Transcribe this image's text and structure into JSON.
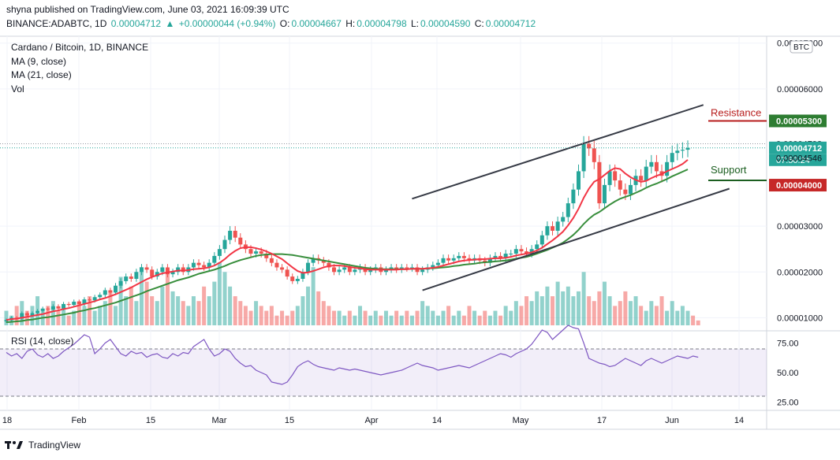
{
  "header": {
    "published": "shyna published on TradingView.com, June 03, 2021 16:09:39 UTC",
    "symbol": "BINANCE:ADABTC, 1D",
    "price": "0.00004712",
    "change": "+0.00000044 (+0.94%)",
    "open_label": "O:",
    "open": "0.00004667",
    "high_label": "H:",
    "high": "0.00004798",
    "low_label": "L:",
    "low": "0.00004590",
    "close_label": "C:",
    "close": "0.00004712"
  },
  "legend": {
    "title": "Cardano / Bitcoin, 1D, BINANCE",
    "ma9": "MA (9, close)",
    "ma21": "MA (21, close)",
    "vol": "Vol",
    "currency": "BTC"
  },
  "rsi_label": "RSI (14, close)",
  "footer": {
    "brand": "TradingView"
  },
  "colors": {
    "up": "#26a69a",
    "down": "#ef5350",
    "ma9": "#f23645",
    "ma21": "#388e3c",
    "rsi": "#7e57c2",
    "resistance": "#b71c1c",
    "support": "#1b5e20"
  },
  "chart_data": {
    "type": "candlestick",
    "title": "Cardano / Bitcoin, 1D, BINANCE",
    "y_ticks": [
      "0.00007000",
      "0.00006000",
      "0.00005300",
      "0.00004798",
      "0.00004712",
      "0.00004546",
      "0.00004000",
      "0.00003000",
      "0.00002000",
      "0.00001000"
    ],
    "ylim": [
      8e-06,
      7.15e-05
    ],
    "x_ticks": [
      "18",
      "Feb",
      "15",
      "Mar",
      "15",
      "Apr",
      "14",
      "May",
      "17",
      "Jun",
      "14"
    ],
    "price_labels": {
      "resistance_level": "0.00005300",
      "high": "0.00004798",
      "last": "0.00004712",
      "countdown": "07:50:24",
      "ma": "0.00004546",
      "support_level": "0.00004000"
    },
    "annotations": {
      "resistance": "Resistance",
      "support": "Support"
    },
    "close_series": [
      9.5e-06,
      1e-05,
      9.8e-06,
      1.1e-05,
      1.05e-05,
      1.1e-05,
      1.15e-05,
      1.2e-05,
      1.18e-05,
      1.25e-05,
      1.2e-05,
      1.3e-05,
      1.28e-05,
      1.35e-05,
      1.3e-05,
      1.4e-05,
      1.38e-05,
      1.45e-05,
      1.5e-05,
      1.6e-05,
      1.55e-05,
      1.7e-05,
      1.8e-05,
      1.9e-05,
      1.85e-05,
      2e-05,
      2.1e-05,
      2.05e-05,
      1.9e-05,
      2e-05,
      2.1e-05,
      1.95e-05,
      2e-05,
      2.1e-05,
      2e-05,
      2.1e-05,
      2.2e-05,
      2.15e-05,
      2.1e-05,
      2.2e-05,
      2.35e-05,
      2.5e-05,
      2.7e-05,
      2.9e-05,
      2.75e-05,
      2.6e-05,
      2.5e-05,
      2.4e-05,
      2.45e-05,
      2.4e-05,
      2.3e-05,
      2.2e-05,
      2.1e-05,
      2.05e-05,
      1.9e-05,
      1.8e-05,
      1.85e-05,
      2e-05,
      2.2e-05,
      2.3e-05,
      2.25e-05,
      2.2e-05,
      2.1e-05,
      2e-05,
      2.05e-05,
      2.1e-05,
      2e-05,
      2.05e-05,
      2.1e-05,
      2e-05,
      2.05e-05,
      2.1e-05,
      2e-05,
      2.05e-05,
      2.1e-05,
      2.05e-05,
      2.1e-05,
      2.08e-05,
      2.1e-05,
      2e-05,
      2.05e-05,
      2.1e-05,
      2.15e-05,
      2.2e-05,
      2.3e-05,
      2.25e-05,
      2.3e-05,
      2.35e-05,
      2.3e-05,
      2.25e-05,
      2.3e-05,
      2.25e-05,
      2.2e-05,
      2.3e-05,
      2.35e-05,
      2.3e-05,
      2.4e-05,
      2.4e-05,
      2.5e-05,
      2.45e-05,
      2.4e-05,
      2.5e-05,
      2.6e-05,
      2.8e-05,
      3e-05,
      2.9e-05,
      3.1e-05,
      3.2e-05,
      3.5e-05,
      3.8e-05,
      4.2e-05,
      4.8e-05,
      4.7e-05,
      4.4e-05,
      3.5e-05,
      3.9e-05,
      4.2e-05,
      4e-05,
      3.8e-05,
      3.7e-05,
      3.9e-05,
      4.1e-05,
      4e-05,
      4.3e-05,
      4.4e-05,
      4.2e-05,
      4.1e-05,
      4.4e-05,
      4.6e-05,
      4.65e-05,
      4.67e-05,
      4.71e-05
    ],
    "ma9_series": [
      9.5e-06,
      9.7e-06,
      9.8e-06,
      1e-05,
      1.02e-05,
      1.04e-05,
      1.06e-05,
      1.08e-05,
      1.11e-05,
      1.14e-05,
      1.16e-05,
      1.19e-05,
      1.21e-05,
      1.24e-05,
      1.27e-05,
      1.3e-05,
      1.33e-05,
      1.36e-05,
      1.4e-05,
      1.43e-05,
      1.47e-05,
      1.51e-05,
      1.56e-05,
      1.61e-05,
      1.66e-05,
      1.72e-05,
      1.78e-05,
      1.84e-05,
      1.89e-05,
      1.93e-05,
      1.97e-05,
      1.99e-05,
      2.01e-05,
      2.03e-05,
      2.03e-05,
      2.04e-05,
      2.06e-05,
      2.07e-05,
      2.08e-05,
      2.1e-05,
      2.14e-05,
      2.2e-05,
      2.28e-05,
      2.38e-05,
      2.46e-05,
      2.52e-05,
      2.54e-05,
      2.54e-05,
      2.52e-05,
      2.49e-05,
      2.45e-05,
      2.4e-05,
      2.34e-05,
      2.28e-05,
      2.19e-05,
      2.1e-05,
      2.02e-05,
      1.98e-05,
      1.99e-05,
      2.02e-05,
      2.06e-05,
      2.1e-05,
      2.13e-05,
      2.14e-05,
      2.14e-05,
      2.13e-05,
      2.11e-05,
      2.09e-05,
      2.08e-05,
      2.06e-05,
      2.05e-05,
      2.05e-05,
      2.05e-05,
      2.05e-05,
      2.05e-05,
      2.05e-05,
      2.06e-05,
      2.06e-05,
      2.07e-05,
      2.07e-05,
      2.07e-05,
      2.08e-05,
      2.09e-05,
      2.11e-05,
      2.14e-05,
      2.17e-05,
      2.2e-05,
      2.23e-05,
      2.25e-05,
      2.26e-05,
      2.27e-05,
      2.28e-05,
      2.28e-05,
      2.29e-05,
      2.3e-05,
      2.3e-05,
      2.31e-05,
      2.33e-05,
      2.36e-05,
      2.38e-05,
      2.4e-05,
      2.43e-05,
      2.47e-05,
      2.53e-05,
      2.61e-05,
      2.69e-05,
      2.78e-05,
      2.88e-05,
      3.02e-05,
      3.18e-05,
      3.38e-05,
      3.62e-05,
      3.82e-05,
      3.97e-05,
      4.03e-05,
      4.12e-05,
      4.21e-05,
      4.27e-05,
      4.25e-05,
      4.15e-05,
      4.07e-05,
      4.01e-05,
      3.97e-05,
      3.99e-05,
      4.05e-05,
      4.1e-05,
      4.14e-05,
      4.2e-05,
      4.25e-05,
      4.3e-05,
      4.36e-05,
      4.45e-05
    ],
    "ma21_series": [
      9e-06,
      9.1e-06,
      9.2e-06,
      9.3e-06,
      9.5e-06,
      9.6e-06,
      9.8e-06,
      1e-05,
      1.01e-05,
      1.03e-05,
      1.05e-05,
      1.07e-05,
      1.09e-05,
      1.11e-05,
      1.14e-05,
      1.16e-05,
      1.19e-05,
      1.21e-05,
      1.24e-05,
      1.27e-05,
      1.3e-05,
      1.33e-05,
      1.37e-05,
      1.41e-05,
      1.45e-05,
      1.49e-05,
      1.53e-05,
      1.58e-05,
      1.62e-05,
      1.66e-05,
      1.7e-05,
      1.74e-05,
      1.78e-05,
      1.82e-05,
      1.85e-05,
      1.88e-05,
      1.92e-05,
      1.96e-05,
      1.99e-05,
      2.02e-05,
      2.05e-05,
      2.09e-05,
      2.13e-05,
      2.18e-05,
      2.22e-05,
      2.26e-05,
      2.29e-05,
      2.32e-05,
      2.35e-05,
      2.37e-05,
      2.38e-05,
      2.39e-05,
      2.39e-05,
      2.39e-05,
      2.38e-05,
      2.37e-05,
      2.35e-05,
      2.33e-05,
      2.31e-05,
      2.29e-05,
      2.27e-05,
      2.25e-05,
      2.23e-05,
      2.21e-05,
      2.19e-05,
      2.17e-05,
      2.15e-05,
      2.13e-05,
      2.11e-05,
      2.09e-05,
      2.08e-05,
      2.07e-05,
      2.06e-05,
      2.06e-05,
      2.06e-05,
      2.06e-05,
      2.06e-05,
      2.06e-05,
      2.07e-05,
      2.07e-05,
      2.07e-05,
      2.08e-05,
      2.08e-05,
      2.09e-05,
      2.1e-05,
      2.11e-05,
      2.13e-05,
      2.14e-05,
      2.16e-05,
      2.17e-05,
      2.18e-05,
      2.2e-05,
      2.21e-05,
      2.22e-05,
      2.23e-05,
      2.24e-05,
      2.25e-05,
      2.27e-05,
      2.29e-05,
      2.31e-05,
      2.33e-05,
      2.36e-05,
      2.4e-05,
      2.44e-05,
      2.48e-05,
      2.53e-05,
      2.58e-05,
      2.64e-05,
      2.72e-05,
      2.81e-05,
      2.92e-05,
      3.05e-05,
      3.16e-05,
      3.25e-05,
      3.31e-05,
      3.39e-05,
      3.47e-05,
      3.54e-05,
      3.6e-05,
      3.64e-05,
      3.68e-05,
      3.73e-05,
      3.78e-05,
      3.84e-05,
      3.89e-05,
      3.93e-05,
      3.98e-05,
      4.03e-05,
      4.09e-05,
      4.14e-05,
      4.19e-05,
      4.24e-05
    ],
    "volume_series": [
      3,
      2,
      4,
      5,
      3,
      4,
      6,
      3,
      4,
      5,
      3,
      4,
      2,
      3,
      5,
      4,
      6,
      3,
      4,
      5,
      7,
      4,
      10,
      6,
      8,
      5,
      12,
      9,
      6,
      5,
      8,
      11,
      7,
      6,
      5,
      4,
      6,
      5,
      8,
      6,
      9,
      13,
      11,
      8,
      6,
      5,
      4,
      3,
      5,
      4,
      3,
      4,
      2,
      3,
      2,
      3,
      4,
      6,
      8,
      12,
      7,
      5,
      4,
      3,
      3,
      2,
      3,
      2,
      4,
      3,
      2,
      3,
      2,
      3,
      2,
      3,
      2,
      3,
      2,
      3,
      5,
      4,
      3,
      2,
      3,
      4,
      2,
      3,
      2,
      4,
      3,
      2,
      3,
      2,
      3,
      2,
      4,
      3,
      5,
      4,
      6,
      5,
      7,
      6,
      8,
      6,
      9,
      7,
      8,
      6,
      7,
      11,
      6,
      5,
      7,
      9,
      6,
      4,
      5,
      7,
      5,
      6,
      4,
      3,
      5,
      4,
      6,
      3,
      5,
      3,
      4,
      3,
      2,
      1
    ],
    "rsi": {
      "label": "RSI (14, close)",
      "levels": [
        75,
        50,
        25
      ],
      "level_labels": [
        "75.00",
        "50.00",
        "25.00"
      ],
      "upper_band": 70,
      "lower_band": 30,
      "values": [
        67,
        64,
        66,
        62,
        68,
        70,
        65,
        63,
        66,
        62,
        64,
        68,
        71,
        74,
        78,
        82,
        80,
        66,
        70,
        75,
        78,
        72,
        66,
        64,
        68,
        66,
        67,
        63,
        65,
        66,
        63,
        62,
        66,
        64,
        67,
        66,
        72,
        75,
        78,
        70,
        64,
        66,
        70,
        68,
        62,
        58,
        55,
        56,
        52,
        50,
        48,
        42,
        41,
        40,
        42,
        48,
        55,
        58,
        60,
        57,
        55,
        54,
        53,
        52,
        54,
        53,
        52,
        53,
        52,
        51,
        50,
        49,
        48,
        49,
        50,
        51,
        52,
        54,
        56,
        58,
        56,
        55,
        54,
        52,
        53,
        54,
        55,
        56,
        55,
        54,
        56,
        58,
        60,
        62,
        64,
        66,
        65,
        63,
        66,
        68,
        70,
        74,
        80,
        86,
        84,
        78,
        82,
        86,
        90,
        88,
        87,
        75,
        62,
        60,
        58,
        57,
        55,
        56,
        59,
        62,
        60,
        58,
        56,
        60,
        62,
        60,
        58,
        60,
        62,
        64,
        63,
        62,
        64,
        63
      ]
    },
    "trendlines": {
      "upper": [
        [
          3.6e-05,
          78
        ],
        [
          5.65e-05,
          134
        ]
      ],
      "lower": [
        [
          1.6e-05,
          80
        ],
        [
          3.82e-05,
          139
        ]
      ]
    },
    "horizontal_levels": {
      "resistance": 5.3e-05,
      "support": 4e-05
    }
  }
}
